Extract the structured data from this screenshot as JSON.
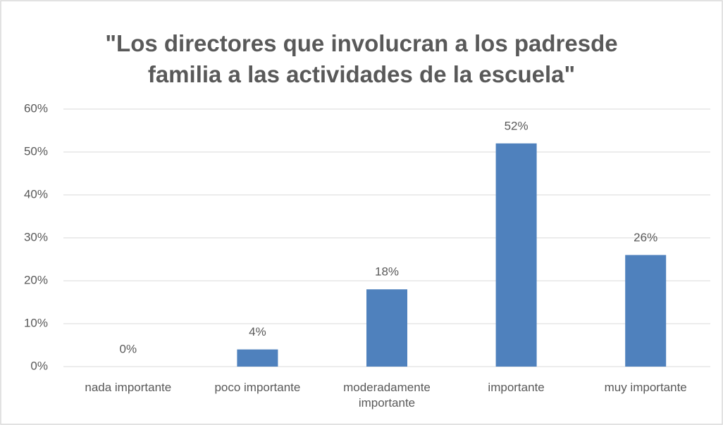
{
  "chart_data": {
    "type": "bar",
    "title": "\"Los directores que involucran a los padresde familia a las actividades de la escuela\"",
    "categories": [
      "nada importante",
      "poco importante",
      "moderadamente importante",
      "importante",
      "muy importante"
    ],
    "values": [
      0,
      4,
      18,
      52,
      26
    ],
    "value_labels": [
      "0%",
      "4%",
      "18%",
      "52%",
      "26%"
    ],
    "color": "#4f81bd",
    "ylim": [
      0,
      60
    ],
    "yticks": [
      {
        "value": 0,
        "label": "0%"
      },
      {
        "value": 10,
        "label": "10%"
      },
      {
        "value": 20,
        "label": "20%"
      },
      {
        "value": 30,
        "label": "30%"
      },
      {
        "value": 40,
        "label": "40%"
      },
      {
        "value": 50,
        "label": "50%"
      },
      {
        "value": 60,
        "label": "60%"
      }
    ],
    "grid": true
  }
}
